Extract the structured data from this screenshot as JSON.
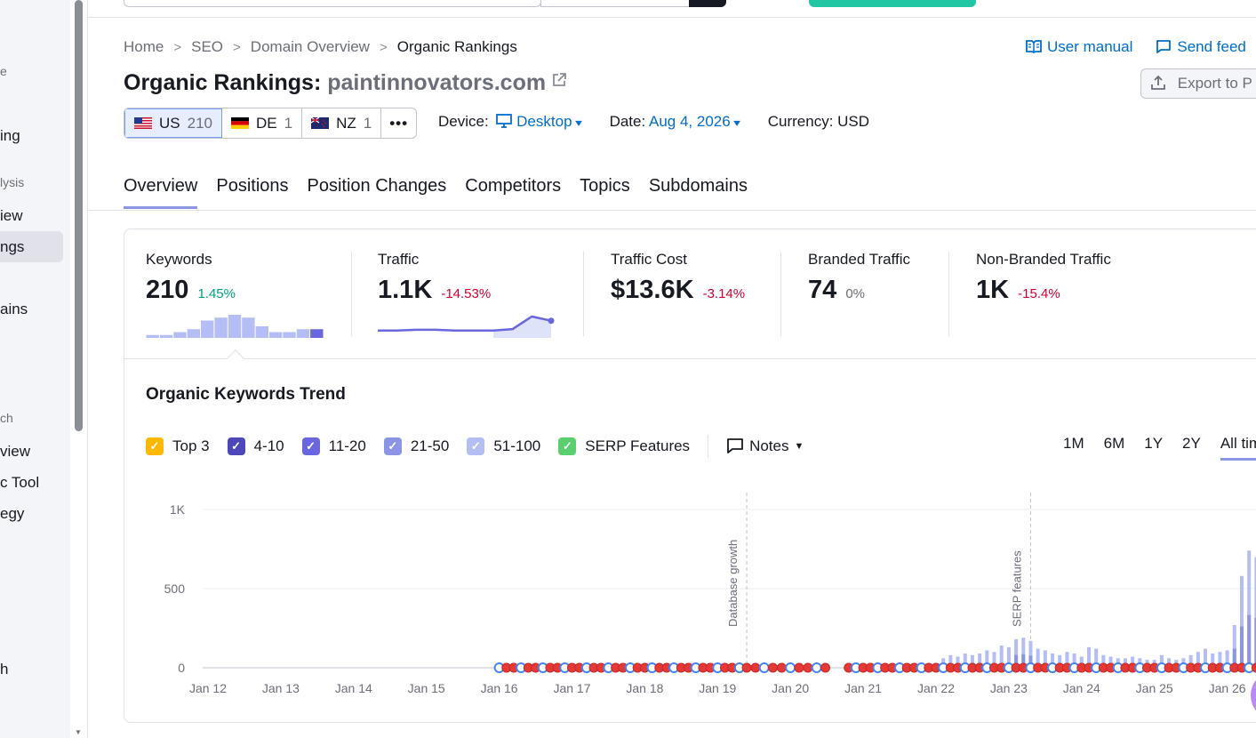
{
  "sidebar": {
    "items": [
      {
        "label": "e",
        "kind": "head"
      },
      {
        "label": "ing",
        "kind": "item"
      },
      {
        "label": "lysis",
        "kind": "head"
      },
      {
        "label": "iew",
        "kind": "item"
      },
      {
        "label": "ngs",
        "kind": "item"
      },
      {
        "label": "ains",
        "kind": "item"
      },
      {
        "label": "ch",
        "kind": "head"
      },
      {
        "label": "view",
        "kind": "item"
      },
      {
        "label": "c Tool",
        "kind": "item"
      },
      {
        "label": "egy",
        "kind": "item"
      },
      {
        "label": "h",
        "kind": "item"
      }
    ]
  },
  "breadcrumbs": [
    "Home",
    "SEO",
    "Domain Overview",
    "Organic Rankings"
  ],
  "links": {
    "manual": "User manual",
    "feedback": "Send feed"
  },
  "title": {
    "label": "Organic Rankings:",
    "domain": "paintinnovators.com"
  },
  "export_label": "Export to P",
  "databases": [
    {
      "code": "US",
      "count": "210",
      "active": true
    },
    {
      "code": "DE",
      "count": "1",
      "active": false
    },
    {
      "code": "NZ",
      "count": "1",
      "active": false
    }
  ],
  "more_label": "•••",
  "filters": {
    "device_label": "Device:",
    "device_value": "Desktop",
    "date_label": "Date:",
    "date_value": "Aug 4, 2026",
    "currency_label": "Currency:",
    "currency_value": "USD"
  },
  "tabs": [
    "Overview",
    "Positions",
    "Position Changes",
    "Competitors",
    "Topics",
    "Subdomains"
  ],
  "kpis": [
    {
      "label": "Keywords",
      "value": "210",
      "delta": "1.45%",
      "trend": "pos"
    },
    {
      "label": "Traffic",
      "value": "1.1K",
      "delta": "-14.53%",
      "trend": "neg"
    },
    {
      "label": "Traffic Cost",
      "value": "$13.6K",
      "delta": "-3.14%",
      "trend": "neg"
    },
    {
      "label": "Branded Traffic",
      "value": "74",
      "delta": "0%",
      "trend": "neu"
    },
    {
      "label": "Non-Branded Traffic",
      "value": "1K",
      "delta": "-15.4%",
      "trend": "neg"
    }
  ],
  "keywords_spark": [
    1,
    1,
    2,
    3,
    6,
    7,
    8,
    7,
    4,
    2,
    2,
    3,
    3
  ],
  "traffic_spark": [
    4,
    4,
    4.5,
    4.5,
    4,
    4,
    4,
    5,
    14,
    11
  ],
  "trend": {
    "title": "Organic Keywords Trend",
    "legend": [
      {
        "label": "Top 3",
        "color": "#ffb800",
        "check": "✓"
      },
      {
        "label": "4-10",
        "color": "#4d47b8",
        "check": "✓"
      },
      {
        "label": "11-20",
        "color": "#6a66df",
        "check": "✓"
      },
      {
        "label": "21-50",
        "color": "#8b95e4",
        "check": "✓"
      },
      {
        "label": "51-100",
        "color": "#b4bdf4",
        "check": "✓"
      },
      {
        "label": "SERP Features",
        "color": "#59cf6e",
        "check": "✓"
      }
    ],
    "notes_label": "Notes",
    "periods": [
      "1M",
      "6M",
      "1Y",
      "2Y",
      "All tim"
    ],
    "active_period": "All tim"
  },
  "chart_data": {
    "type": "bar",
    "ylim": [
      0,
      1000
    ],
    "yticks": [
      "1K",
      "500",
      "0"
    ],
    "x_ticks": [
      "Jan 12",
      "Jan 13",
      "Jan 14",
      "Jan 15",
      "Jan 16",
      "Jan 17",
      "Jan 18",
      "Jan 19",
      "Jan 20",
      "Jan 21",
      "Jan 22",
      "Jan 23",
      "Jan 24",
      "Jan 25",
      "Jan 26"
    ],
    "annotations": [
      {
        "label": "Database growth",
        "x": "Jan 19.4"
      },
      {
        "label": "SERP features",
        "x": "Jan 23.3"
      }
    ],
    "series": [
      {
        "name": "Keywords",
        "values": [
          {
            "x": 22.1,
            "y": 60
          },
          {
            "x": 22.2,
            "y": 80
          },
          {
            "x": 22.3,
            "y": 70
          },
          {
            "x": 22.4,
            "y": 90
          },
          {
            "x": 22.5,
            "y": 80
          },
          {
            "x": 22.6,
            "y": 90
          },
          {
            "x": 22.7,
            "y": 110
          },
          {
            "x": 22.8,
            "y": 100
          },
          {
            "x": 22.9,
            "y": 140
          },
          {
            "x": 23.0,
            "y": 130
          },
          {
            "x": 23.1,
            "y": 180
          },
          {
            "x": 23.2,
            "y": 190
          },
          {
            "x": 23.3,
            "y": 170
          },
          {
            "x": 23.4,
            "y": 120
          },
          {
            "x": 23.5,
            "y": 110
          },
          {
            "x": 23.6,
            "y": 90
          },
          {
            "x": 23.7,
            "y": 80
          },
          {
            "x": 23.8,
            "y": 100
          },
          {
            "x": 23.9,
            "y": 90
          },
          {
            "x": 24.0,
            "y": 70
          },
          {
            "x": 24.1,
            "y": 130
          },
          {
            "x": 24.2,
            "y": 120
          },
          {
            "x": 24.3,
            "y": 80
          },
          {
            "x": 24.4,
            "y": 70
          },
          {
            "x": 24.5,
            "y": 60
          },
          {
            "x": 24.6,
            "y": 60
          },
          {
            "x": 24.7,
            "y": 70
          },
          {
            "x": 24.8,
            "y": 60
          },
          {
            "x": 24.9,
            "y": 50
          },
          {
            "x": 25.0,
            "y": 50
          },
          {
            "x": 25.1,
            "y": 80
          },
          {
            "x": 25.2,
            "y": 60
          },
          {
            "x": 25.3,
            "y": 50
          },
          {
            "x": 25.4,
            "y": 60
          },
          {
            "x": 25.5,
            "y": 80
          },
          {
            "x": 25.6,
            "y": 100
          },
          {
            "x": 25.7,
            "y": 120
          },
          {
            "x": 25.8,
            "y": 90
          },
          {
            "x": 25.9,
            "y": 100
          },
          {
            "x": 26.0,
            "y": 110
          },
          {
            "x": 26.1,
            "y": 270
          },
          {
            "x": 26.2,
            "y": 580
          },
          {
            "x": 26.3,
            "y": 740
          },
          {
            "x": 26.4,
            "y": 700
          }
        ]
      }
    ]
  }
}
